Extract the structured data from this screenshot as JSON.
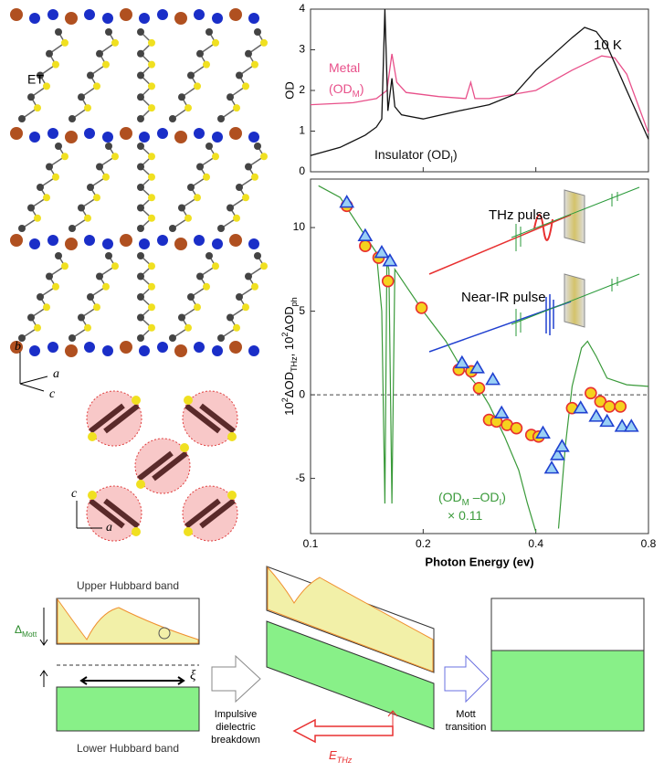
{
  "chart_data": [
    {
      "type": "line",
      "ylabel": "OD",
      "annotation": "10 K",
      "xscale": "log",
      "xlim": [
        0.1,
        0.8
      ],
      "xticks": [
        0.1,
        0.2,
        0.4,
        0.8
      ],
      "ylim": [
        0,
        4
      ],
      "yticks": [
        0,
        1,
        2,
        3,
        4
      ],
      "series": [
        {
          "name": [
            [
              {
                "t": "Metal"
              }
            ],
            [
              {
                "t": "(OD"
              },
              {
                "sub": "M"
              },
              {
                "t": ")"
              }
            ]
          ],
          "color": "#e8508a",
          "x": [
            0.1,
            0.13,
            0.15,
            0.16,
            0.165,
            0.17,
            0.18,
            0.22,
            0.26,
            0.268,
            0.275,
            0.3,
            0.4,
            0.5,
            0.6,
            0.65,
            0.7,
            0.8
          ],
          "values": [
            1.65,
            1.7,
            1.8,
            2.0,
            2.9,
            2.2,
            1.95,
            1.85,
            1.8,
            2.2,
            1.8,
            1.8,
            2.0,
            2.5,
            2.85,
            2.8,
            2.4,
            0.95
          ]
        },
        {
          "name": [
            [
              {
                "t": "Insulator (OD"
              },
              {
                "sub": "I"
              },
              {
                "t": ")"
              }
            ]
          ],
          "color": "#111111",
          "x": [
            0.1,
            0.12,
            0.14,
            0.15,
            0.155,
            0.158,
            0.161,
            0.165,
            0.168,
            0.175,
            0.2,
            0.25,
            0.3,
            0.35,
            0.4,
            0.5,
            0.54,
            0.58,
            0.62,
            0.7,
            0.8
          ],
          "values": [
            0.4,
            0.6,
            0.9,
            1.1,
            1.3,
            4.0,
            1.5,
            2.3,
            1.6,
            1.4,
            1.3,
            1.5,
            1.65,
            1.9,
            2.5,
            3.3,
            3.55,
            3.45,
            3.1,
            2.0,
            0.8
          ]
        }
      ]
    },
    {
      "type": "scatter",
      "xlabel": "Photon Energy (ev)",
      "ylabel": [
        {
          "t": "10"
        },
        {
          "sup": "2"
        },
        {
          "t": "ΔOD"
        },
        {
          "sub": "THz"
        },
        {
          "t": ", 10"
        },
        {
          "sup": "2"
        },
        {
          "t": "ΔOD"
        },
        {
          "sub": "ph"
        }
      ],
      "annotations": [
        "THz pulse",
        "Near-IR pulse"
      ],
      "xscale": "log",
      "xlim": [
        0.1,
        0.8
      ],
      "xticks": [
        0.1,
        0.2,
        0.4,
        0.8
      ],
      "ylim": [
        -8.3,
        12.9
      ],
      "yticks": [
        -5,
        0,
        5,
        10
      ],
      "series": [
        {
          "type": "line",
          "name": [
            [
              {
                "t": "(OD"
              },
              {
                "sub": "M"
              },
              {
                "t": " –OD"
              },
              {
                "sub": "I"
              },
              {
                "t": ")"
              }
            ],
            [
              {
                "t": "× 0.11"
              }
            ]
          ],
          "color": "#3a9a3a",
          "x": [
            0.105,
            0.12,
            0.14,
            0.15,
            0.155,
            0.158,
            0.16,
            0.162,
            0.165,
            0.168,
            0.18,
            0.2,
            0.23,
            0.25,
            0.28,
            0.3,
            0.33,
            0.36,
            0.38,
            0.4,
            0.43,
            0.46,
            0.48,
            0.5,
            0.53,
            0.55,
            0.58,
            0.62,
            0.7,
            0.8
          ],
          "values": [
            12.5,
            11.8,
            9.5,
            8.5,
            5,
            -6.5,
            8,
            7.5,
            -6.5,
            7.5,
            6.5,
            5.0,
            3.2,
            1.8,
            0.5,
            -0.6,
            -2.5,
            -4.5,
            -6.5,
            -8.2,
            null,
            -8,
            -3,
            0.5,
            2.8,
            3.2,
            2.3,
            1.0,
            0.6,
            0.5
          ]
        },
        {
          "type": "scatter",
          "marker": "circle",
          "color": "#f5d21e",
          "edge": "#e83030",
          "x": [
            0.125,
            0.14,
            0.152,
            0.161,
            0.198,
            0.249,
            0.269,
            0.282,
            0.3,
            0.314,
            0.335,
            0.355,
            0.389,
            0.407,
            0.5,
            0.561,
            0.595,
            0.629,
            0.673
          ],
          "values": [
            11.3,
            8.9,
            8.2,
            6.8,
            5.2,
            1.5,
            1.4,
            0.4,
            -1.5,
            -1.6,
            -1.8,
            -2.0,
            -2.4,
            -2.5,
            -0.8,
            0.1,
            -0.4,
            -0.7,
            -0.7
          ]
        },
        {
          "type": "scatter",
          "marker": "triangle",
          "color": "#9ad0f5",
          "edge": "#2040d0",
          "x": [
            0.125,
            0.14,
            0.155,
            0.163,
            0.254,
            0.279,
            0.307,
            0.324,
            0.418,
            0.441,
            0.457,
            0.47,
            0.527,
            0.58,
            0.62,
            0.68,
            0.72
          ],
          "values": [
            11.5,
            9.5,
            8.5,
            8.0,
            1.9,
            1.6,
            0.9,
            -1.1,
            -2.3,
            -4.4,
            -3.6,
            -3.1,
            -0.8,
            -1.3,
            -1.6,
            -1.9,
            -1.9
          ]
        }
      ]
    }
  ],
  "structure": {
    "et": "ET",
    "axes1": [
      "b",
      "a",
      "c"
    ],
    "axes2": [
      "c",
      "a"
    ]
  },
  "diagram": {
    "upper": "Upper Hubbard band",
    "lower": "Lower Hubbard band",
    "gap": [
      {
        "t": "Δ"
      },
      {
        "sub": "Mott"
      }
    ],
    "xi": "ξ",
    "step1": [
      "Impulsive",
      "dielectric",
      "breakdown"
    ],
    "field": [
      {
        "t": "E"
      },
      {
        "sub": "THz"
      }
    ],
    "step2": [
      "Mott",
      "transition"
    ]
  }
}
